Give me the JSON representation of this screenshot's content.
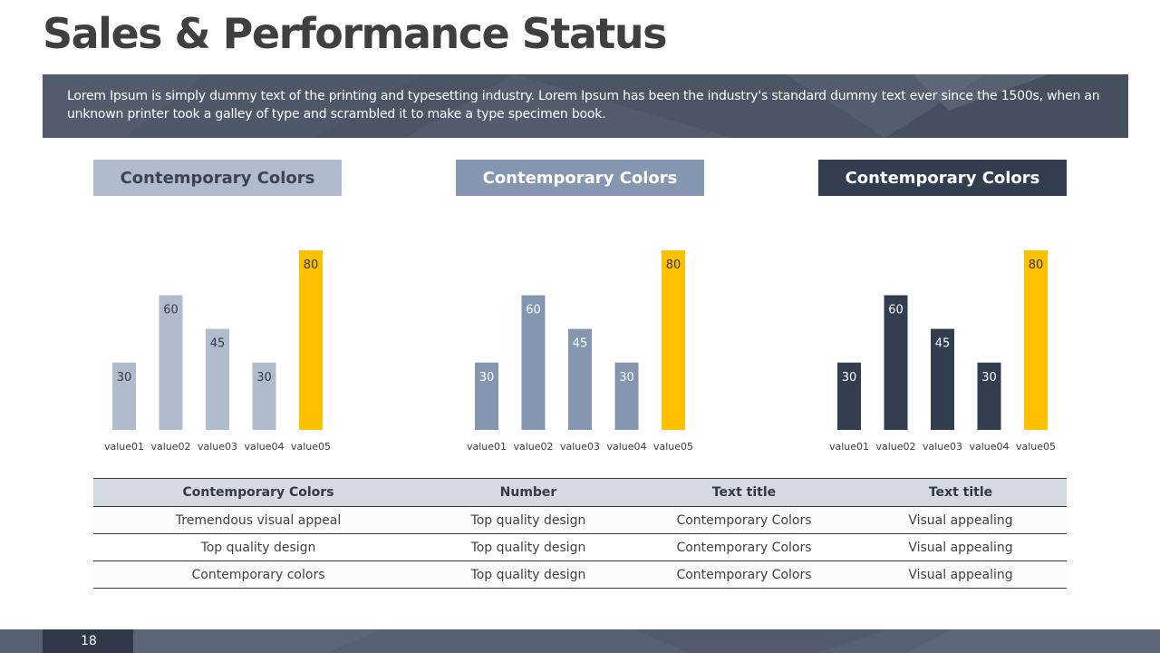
{
  "slide": {
    "title": "Sales & Performance Status",
    "description": "Lorem Ipsum is simply dummy text of the printing and typesetting industry. Lorem Ipsum has been the industry's standard dummy text ever since the 1500s, when an unknown printer took a galley of type and scrambled it to make a type specimen book.",
    "page_number": "18"
  },
  "colors": {
    "light": "#b0bbcd",
    "medium": "#8597b0",
    "dark": "#323e50",
    "highlight": "#ffc000",
    "banner": "#4b5564"
  },
  "chart_data": [
    {
      "type": "bar",
      "title": "Contemporary Colors",
      "categories": [
        "value01",
        "value02",
        "value03",
        "value04",
        "value05"
      ],
      "values": [
        30,
        60,
        45,
        30,
        80
      ],
      "ylim": [
        0,
        80
      ],
      "grid": false,
      "bar_colors": [
        "#b0bbcd",
        "#b0bbcd",
        "#b0bbcd",
        "#b0bbcd",
        "#ffc000"
      ]
    },
    {
      "type": "bar",
      "title": "Contemporary Colors",
      "categories": [
        "value01",
        "value02",
        "value03",
        "value04",
        "value05"
      ],
      "values": [
        30,
        60,
        45,
        30,
        80
      ],
      "ylim": [
        0,
        80
      ],
      "grid": false,
      "bar_colors": [
        "#8597b0",
        "#8597b0",
        "#8597b0",
        "#8597b0",
        "#ffc000"
      ]
    },
    {
      "type": "bar",
      "title": "Contemporary Colors",
      "categories": [
        "value01",
        "value02",
        "value03",
        "value04",
        "value05"
      ],
      "values": [
        30,
        60,
        45,
        30,
        80
      ],
      "ylim": [
        0,
        80
      ],
      "grid": false,
      "bar_colors": [
        "#323e50",
        "#323e50",
        "#323e50",
        "#323e50",
        "#ffc000"
      ]
    }
  ],
  "table": {
    "headers": [
      "Contemporary Colors",
      "Number",
      "Text title",
      "Text title"
    ],
    "rows": [
      [
        "Tremendous visual appeal",
        "Top quality design",
        "Contemporary Colors",
        "Visual appealing"
      ],
      [
        "Top quality design",
        "Top quality design",
        "Contemporary Colors",
        "Visual appealing"
      ],
      [
        "Contemporary colors",
        "Top quality design",
        "Contemporary Colors",
        "Visual appealing"
      ]
    ]
  }
}
